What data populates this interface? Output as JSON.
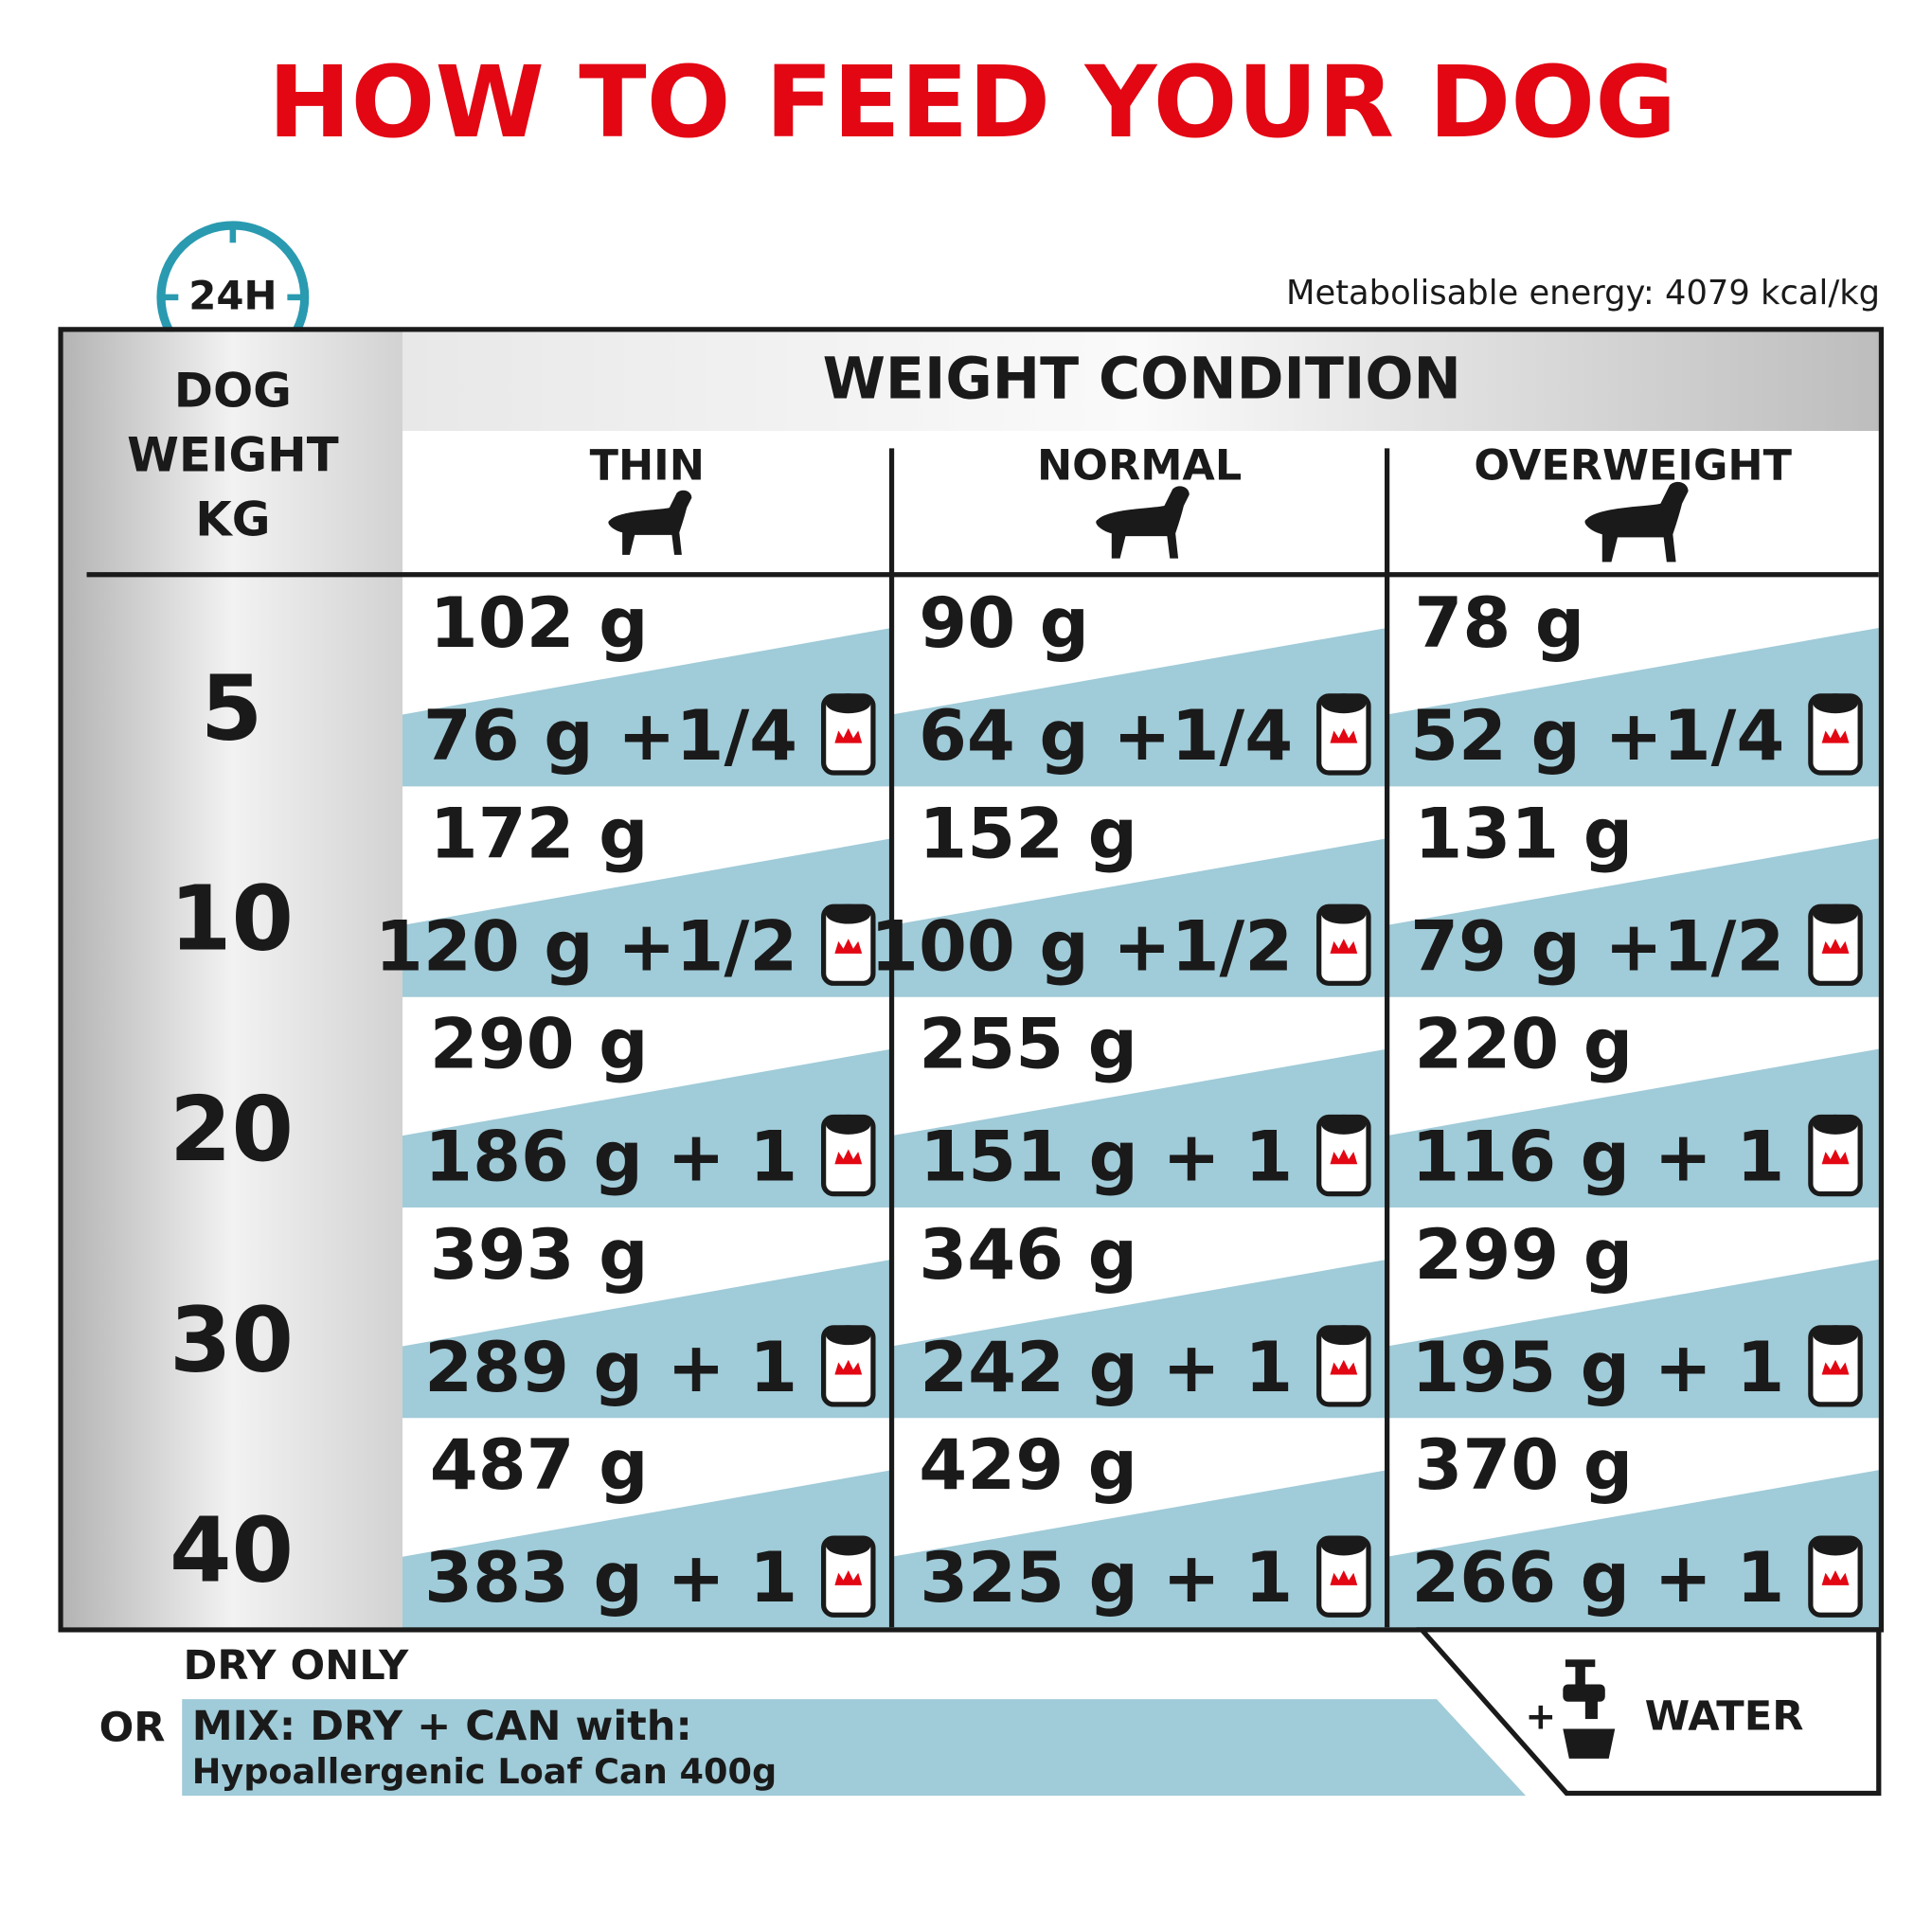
{
  "title": "HOW TO FEED YOUR DOG",
  "icon_label": "24H",
  "energy": "Metabolisable energy: 4079 kcal/kg",
  "table": {
    "weight_header": [
      "DOG",
      "WEIGHT",
      "KG"
    ],
    "condition_header": "WEIGHT CONDITION",
    "columns": [
      "THIN",
      "NORMAL",
      "OVERWEIGHT"
    ],
    "rows": [
      {
        "weight": "5",
        "cells": [
          {
            "dry": "102 g",
            "mix": "76 g +1/4"
          },
          {
            "dry": "90 g",
            "mix": "64 g +1/4"
          },
          {
            "dry": "78 g",
            "mix": "52 g +1/4"
          }
        ]
      },
      {
        "weight": "10",
        "cells": [
          {
            "dry": "172 g",
            "mix": "120 g +1/2"
          },
          {
            "dry": "152 g",
            "mix": "100 g +1/2"
          },
          {
            "dry": "131 g",
            "mix": "79 g +1/2"
          }
        ]
      },
      {
        "weight": "20",
        "cells": [
          {
            "dry": "290 g",
            "mix": "186 g + 1"
          },
          {
            "dry": "255 g",
            "mix": "151 g + 1"
          },
          {
            "dry": "220 g",
            "mix": "116 g + 1"
          }
        ]
      },
      {
        "weight": "30",
        "cells": [
          {
            "dry": "393 g",
            "mix": "289 g + 1"
          },
          {
            "dry": "346 g",
            "mix": "242 g + 1"
          },
          {
            "dry": "299 g",
            "mix": "195 g + 1"
          }
        ]
      },
      {
        "weight": "40",
        "cells": [
          {
            "dry": "487 g",
            "mix": "383 g + 1"
          },
          {
            "dry": "429 g",
            "mix": "325 g + 1"
          },
          {
            "dry": "370 g",
            "mix": "266 g + 1"
          }
        ]
      }
    ]
  },
  "footer": {
    "dry_only": "DRY ONLY",
    "or": "OR",
    "mix": "MIX: DRY + CAN with:",
    "can": "Hypoallergenic Loaf Can 400g",
    "plus": "+",
    "water": "WATER"
  }
}
